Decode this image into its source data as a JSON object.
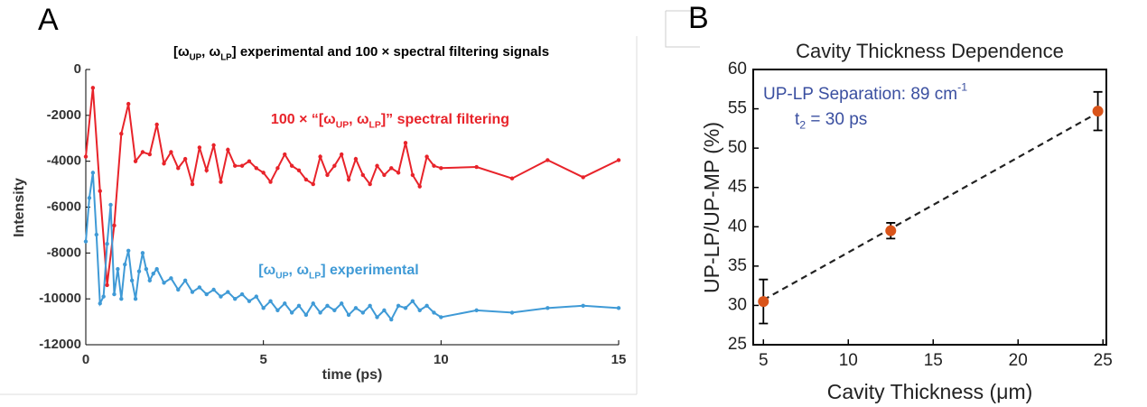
{
  "chart_data": [
    {
      "type": "line",
      "panel_label": "A",
      "title": [
        {
          "text": "[ω"
        },
        {
          "text": "UP",
          "sub": true
        },
        {
          "text": ", ω"
        },
        {
          "text": "LP",
          "sub": true
        },
        {
          "text": "] experimental and 100 × spectral filtering signals"
        }
      ],
      "xlabel": "time (ps)",
      "ylabel": "Intensity",
      "xlim": [
        0,
        15
      ],
      "xticks": [
        0,
        5,
        10,
        15
      ],
      "ylim": [
        -12000,
        0
      ],
      "yticks": [
        -12000,
        -10000,
        -8000,
        -6000,
        -4000,
        -2000,
        0
      ],
      "series": [
        {
          "color": "#e8232a",
          "label": [
            {
              "text": "100 × “[ω"
            },
            {
              "text": "UP",
              "sub": true
            },
            {
              "text": ", ω"
            },
            {
              "text": "LP",
              "sub": true
            },
            {
              "text": "]” spectral filtering"
            }
          ],
          "x": [
            0,
            0.2,
            0.4,
            0.6,
            0.8,
            1.0,
            1.2,
            1.4,
            1.6,
            1.8,
            2.0,
            2.2,
            2.4,
            2.6,
            2.8,
            3.0,
            3.2,
            3.4,
            3.6,
            3.8,
            4.0,
            4.2,
            4.4,
            4.6,
            4.8,
            5.0,
            5.2,
            5.4,
            5.6,
            5.8,
            6.0,
            6.2,
            6.4,
            6.6,
            6.8,
            7.0,
            7.2,
            7.4,
            7.6,
            7.8,
            8.0,
            8.2,
            8.4,
            8.6,
            8.8,
            9.0,
            9.2,
            9.4,
            9.6,
            9.8,
            10,
            11,
            12,
            13,
            14,
            15
          ],
          "values": [
            -3800,
            -800,
            -5300,
            -9400,
            -6800,
            -2800,
            -1500,
            -4000,
            -3600,
            -3700,
            -2400,
            -4100,
            -3600,
            -4300,
            -3900,
            -5000,
            -3400,
            -4400,
            -3300,
            -4900,
            -3500,
            -4200,
            -4200,
            -4000,
            -4300,
            -4500,
            -4900,
            -4300,
            -3700,
            -4200,
            -4400,
            -4800,
            -5000,
            -3800,
            -4600,
            -4200,
            -3700,
            -4800,
            -3900,
            -4600,
            -5000,
            -4200,
            -4600,
            -4300,
            -4500,
            -3200,
            -4600,
            -5100,
            -3800,
            -4200,
            -4300,
            -4250,
            -4750,
            -3950,
            -4700,
            -3950
          ]
        },
        {
          "color": "#3f9ad6",
          "label": [
            {
              "text": "[ω"
            },
            {
              "text": "UP",
              "sub": true
            },
            {
              "text": ", ω"
            },
            {
              "text": "LP",
              "sub": true
            },
            {
              "text": "] experimental"
            }
          ],
          "x": [
            0,
            0.1,
            0.2,
            0.3,
            0.4,
            0.5,
            0.6,
            0.7,
            0.8,
            0.9,
            1.0,
            1.1,
            1.2,
            1.3,
            1.4,
            1.5,
            1.6,
            1.7,
            1.8,
            1.9,
            2.0,
            2.2,
            2.4,
            2.6,
            2.8,
            3.0,
            3.2,
            3.4,
            3.6,
            3.8,
            4.0,
            4.2,
            4.4,
            4.6,
            4.8,
            5.0,
            5.2,
            5.4,
            5.6,
            5.8,
            6.0,
            6.2,
            6.4,
            6.6,
            6.8,
            7.0,
            7.2,
            7.4,
            7.6,
            7.8,
            8.0,
            8.2,
            8.4,
            8.6,
            8.8,
            9.0,
            9.2,
            9.4,
            9.6,
            9.8,
            10,
            11,
            12,
            13,
            14,
            15
          ],
          "values": [
            -7500,
            -5600,
            -4500,
            -7200,
            -10200,
            -9900,
            -7600,
            -5900,
            -9800,
            -8700,
            -10000,
            -8500,
            -7900,
            -9200,
            -10000,
            -8800,
            -8000,
            -8700,
            -9200,
            -8900,
            -8700,
            -9300,
            -9100,
            -9600,
            -9200,
            -9700,
            -9500,
            -9800,
            -9600,
            -9900,
            -9700,
            -10000,
            -9800,
            -10100,
            -9900,
            -10400,
            -10100,
            -10500,
            -10200,
            -10600,
            -10300,
            -10700,
            -10200,
            -10600,
            -10300,
            -10500,
            -10200,
            -10700,
            -10400,
            -10600,
            -10300,
            -10800,
            -10500,
            -10900,
            -10300,
            -10400,
            -10100,
            -10500,
            -10300,
            -10600,
            -10800,
            -10500,
            -10600,
            -10400,
            -10300,
            -10400
          ]
        }
      ]
    },
    {
      "type": "scatter",
      "panel_label": "B",
      "title": "Cavity Thickness Dependence",
      "xlabel": "Cavity Thickness (μm)",
      "ylabel": "UP-LP/UP-MP (%)",
      "xlim": [
        4.4,
        25.2
      ],
      "xticks": [
        5,
        10,
        15,
        20,
        25
      ],
      "ylim": [
        25,
        60
      ],
      "yticks": [
        25,
        30,
        35,
        40,
        45,
        50,
        55,
        60
      ],
      "annotation_color": "#3a4fa0",
      "annotations": [
        [
          {
            "text": "UP-LP Separation: 89 cm"
          },
          {
            "text": "-1",
            "sup": true
          }
        ],
        [
          {
            "text": "t"
          },
          {
            "text": "2",
            "sub": true
          },
          {
            "text": " = 30 ps"
          }
        ]
      ],
      "series": [
        {
          "color": "#d9541a",
          "x": [
            5,
            12.5,
            24.7
          ],
          "values": [
            30.5,
            39.5,
            54.7
          ],
          "errors": [
            2.8,
            1.0,
            2.45
          ]
        }
      ],
      "fit": {
        "color": "#222222",
        "x": [
          5,
          24.7
        ],
        "values": [
          30.7,
          54.5
        ]
      }
    }
  ]
}
